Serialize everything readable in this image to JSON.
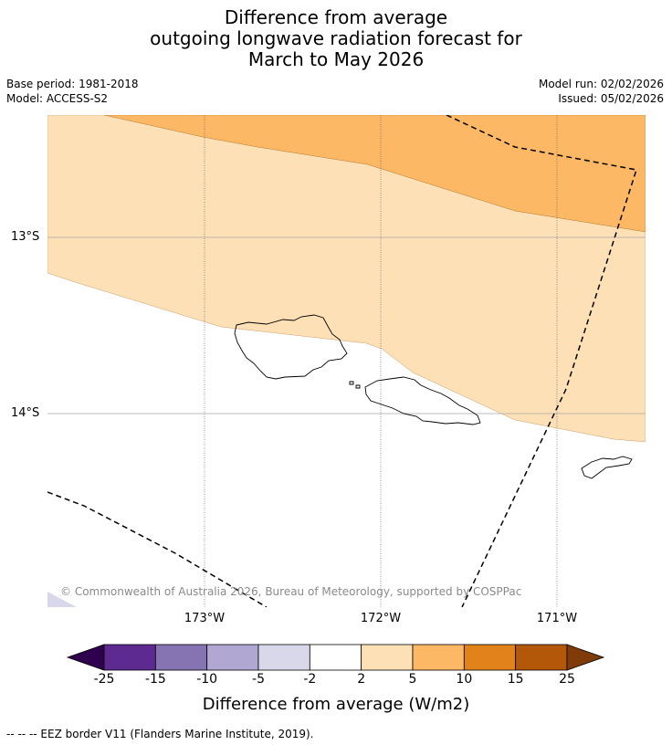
{
  "title": {
    "line1": "Difference from average",
    "line2": "outgoing longwave radiation forecast for",
    "line3": "March to May 2026"
  },
  "meta": {
    "base_period": "Base period: 1981-2018",
    "model": "Model: ACCESS-S2",
    "model_run": "Model run: 02/02/2026",
    "issued": "Issued: 05/02/2026"
  },
  "map": {
    "lat_labels": [
      "13°S",
      "14°S"
    ],
    "lon_labels": [
      "173°W",
      "172°W",
      "171°W"
    ],
    "copyright": "© Commonwealth of Australia 2026, Bureau of Meteorology, supported by COSPPac",
    "colors": {
      "band_2_5": "#fde0b6",
      "band_5_10": "#fcb864",
      "band_neg5_neg2": "#d8d8ea",
      "coast": "#000000"
    }
  },
  "colorbar": {
    "title": "Difference from average (W/m2)",
    "ticks": [
      "-25",
      "-15",
      "-10",
      "-5",
      "-2",
      "2",
      "5",
      "10",
      "15",
      "25"
    ],
    "colors": [
      "#5c2a90",
      "#8573b2",
      "#b0a7d3",
      "#d8d8ea",
      "#ffffff",
      "#fde0b6",
      "#fcb864",
      "#e2821a",
      "#b35808"
    ],
    "under_color": "#2e004d",
    "over_color": "#7f3b08"
  },
  "legend": {
    "text": "--  --  -- EEZ border V11 (Flanders Marine Institute, 2019)."
  }
}
